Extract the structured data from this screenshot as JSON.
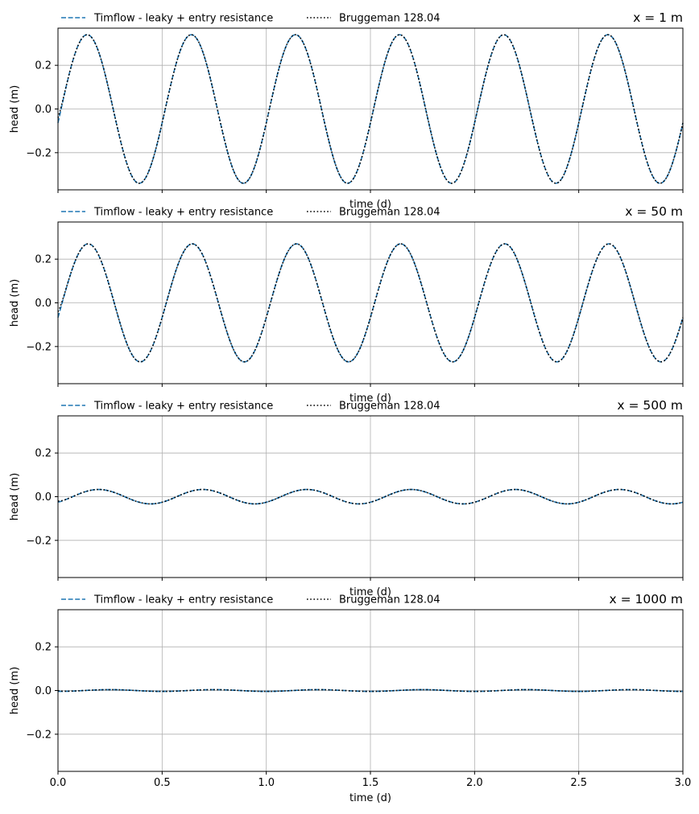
{
  "chart_data": {
    "type": "line",
    "shared_x": true,
    "xlabel": "time (d)",
    "ylabel": "head (m)",
    "xlim": [
      0,
      3.0
    ],
    "ylim": [
      -0.37,
      0.37
    ],
    "xticks": [
      "0.0",
      "0.5",
      "1.0",
      "1.5",
      "2.0",
      "2.5",
      "3.0"
    ],
    "yticks": [
      "−0.2",
      "0.0",
      "0.2"
    ],
    "grid": true,
    "legend_position": "top-left, above axes",
    "legend": [
      {
        "label": "Timflow - leaky + entry resistance",
        "color": "#1f77b4",
        "style": "dashed"
      },
      {
        "label": "Bruggeman 128.04",
        "color": "#000000",
        "style": "dotted"
      }
    ],
    "series_model": "sinusoid, period 0.5 d, amplitude decays with distance x",
    "panels": [
      {
        "title": "x = 1 m",
        "amplitude": 0.34,
        "peak_time": 0.14,
        "x0_value": -0.04
      },
      {
        "title": "x = 50 m",
        "amplitude": 0.27,
        "peak_time": 0.145,
        "x0_value": -0.04
      },
      {
        "title": "x = 500 m",
        "amplitude": 0.033,
        "peak_time": 0.195,
        "x0_value": -0.02
      },
      {
        "title": "x = 1000 m",
        "amplitude": 0.004,
        "peak_time": 0.25,
        "x0_value": 0.0
      }
    ]
  }
}
